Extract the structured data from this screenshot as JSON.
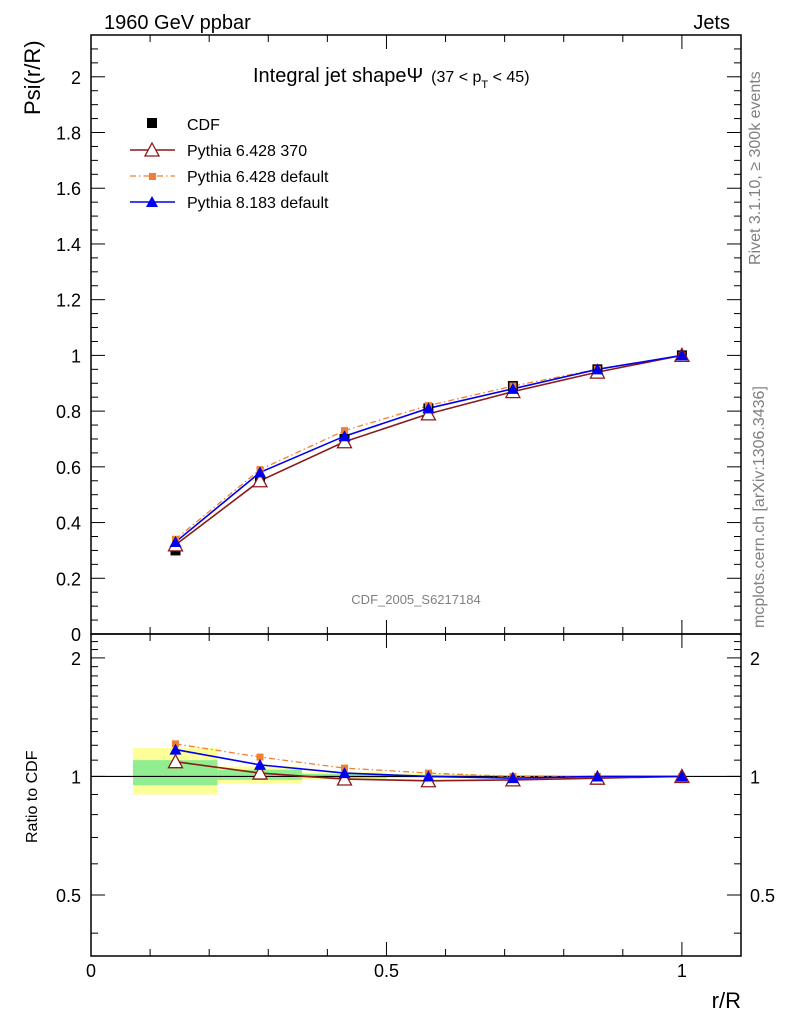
{
  "header": {
    "left": "1960 GeV ppbar",
    "right": "Jets"
  },
  "side_labels": {
    "rivet": "Rivet 3.1.10, ≥ 300k events",
    "mcplots": "mcplots.cern.ch [arXiv:1306.3436]"
  },
  "title": {
    "main": "Integral jet shapeΨ",
    "range_open": "(37 < p",
    "range_sub": "T",
    "range_close": " < 45)"
  },
  "watermark": "CDF_2005_S6217184",
  "colors": {
    "cdf": "#000000",
    "p6_370": "#8b1a1a",
    "p6_default": "#f08030",
    "p8": "#0000ee",
    "band_inner": "#90ee90",
    "band_outer": "#ffff99"
  },
  "chart_data": [
    {
      "type": "line",
      "ylabel": "Psi(r/R)",
      "xlabel": "",
      "ylim": [
        0,
        2.15
      ],
      "xlim": [
        0,
        1.1
      ],
      "y_tick_labels": [
        "0",
        "0.2",
        "0.4",
        "0.6",
        "0.8",
        "1",
        "1.2",
        "1.4",
        "1.6",
        "1.8",
        "2"
      ],
      "x": [
        0.143,
        0.286,
        0.429,
        0.571,
        0.714,
        0.857,
        1.0
      ],
      "series": [
        {
          "name": "CDF",
          "marker": "square",
          "values": [
            0.3,
            0.55,
            0.7,
            0.81,
            0.89,
            0.95,
            1.0
          ]
        },
        {
          "name": "Pythia 6.428 370",
          "marker": "open-triangle",
          "values": [
            0.32,
            0.55,
            0.69,
            0.79,
            0.87,
            0.94,
            1.0
          ]
        },
        {
          "name": "Pythia 6.428 default",
          "marker": "small-square",
          "line": "dash-dot",
          "values": [
            0.34,
            0.59,
            0.73,
            0.82,
            0.89,
            0.95,
            1.0
          ]
        },
        {
          "name": "Pythia 8.183 default",
          "marker": "triangle",
          "values": [
            0.33,
            0.58,
            0.71,
            0.81,
            0.88,
            0.95,
            1.0
          ]
        }
      ]
    },
    {
      "type": "line",
      "ylabel": "Ratio to CDF",
      "xlabel": "r/R",
      "ylim": [
        0.35,
        2.3
      ],
      "xlim": [
        0,
        1.1
      ],
      "y_tick_labels": [
        "0.5",
        "1",
        "2"
      ],
      "x_tick_labels": [
        "0",
        "0.5",
        "1"
      ],
      "x": [
        0.143,
        0.286,
        0.429,
        0.571,
        0.714,
        0.857,
        1.0
      ],
      "bands": [
        {
          "xmin": 0.071,
          "xmax": 0.214,
          "inner": [
            0.95,
            1.1
          ],
          "outer": [
            0.9,
            1.18
          ]
        },
        {
          "xmin": 0.214,
          "xmax": 0.357,
          "inner": [
            0.98,
            1.04
          ],
          "outer": [
            0.96,
            1.06
          ]
        },
        {
          "xmin": 0.357,
          "xmax": 0.5,
          "inner": [
            0.99,
            1.015
          ],
          "outer": [
            0.98,
            1.025
          ]
        },
        {
          "xmin": 0.5,
          "xmax": 0.643,
          "inner": [
            0.995,
            1.01
          ],
          "outer": [
            0.99,
            1.015
          ]
        },
        {
          "xmin": 0.643,
          "xmax": 0.786,
          "inner": [
            0.997,
            1.006
          ],
          "outer": [
            0.995,
            1.01
          ]
        },
        {
          "xmin": 0.786,
          "xmax": 0.929,
          "inner": [
            0.998,
            1.004
          ],
          "outer": [
            0.996,
            1.006
          ]
        }
      ],
      "series": [
        {
          "name": "Pythia 6.428 370",
          "values": [
            1.09,
            1.02,
            0.985,
            0.975,
            0.98,
            0.99,
            1.0
          ]
        },
        {
          "name": "Pythia 6.428 default",
          "values": [
            1.21,
            1.12,
            1.05,
            1.02,
            1.0,
            1.0,
            1.0
          ]
        },
        {
          "name": "Pythia 8.183 default",
          "values": [
            1.17,
            1.07,
            1.02,
            1.0,
            0.99,
            1.0,
            1.0
          ]
        }
      ]
    }
  ]
}
